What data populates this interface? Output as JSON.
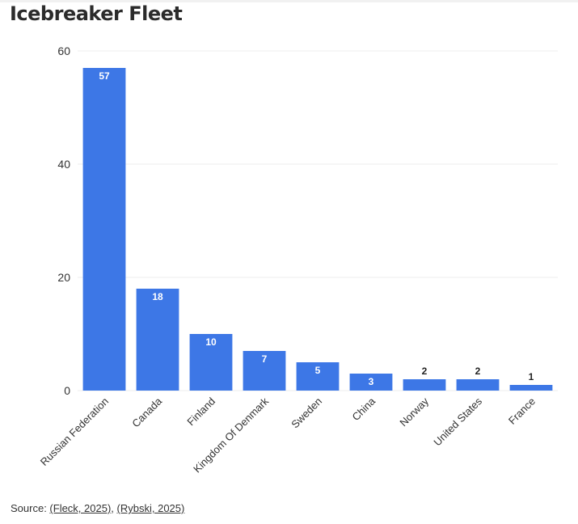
{
  "title": "Icebreaker Fleet",
  "colors": {
    "bar": "#3d77e6",
    "bar_label_inside": "#ffffff",
    "bar_label_outside": "#222222",
    "grid": "#ececec",
    "text": "#333333"
  },
  "chart_data": {
    "type": "bar",
    "title": "Icebreaker Fleet",
    "xlabel": "",
    "ylabel": "",
    "categories": [
      "Russian Federation",
      "Canada",
      "Finland",
      "Kingdom Of Denmark",
      "Sweden",
      "China",
      "Norway",
      "United States",
      "France"
    ],
    "values": [
      57,
      18,
      10,
      7,
      5,
      3,
      2,
      2,
      1
    ],
    "ylim": [
      0,
      60
    ],
    "yticks": [
      0,
      20,
      40,
      60
    ],
    "grid": true,
    "legend": "none",
    "data_labels": true
  },
  "footer": {
    "source_prefix": "Source: ",
    "link1": "(Fleck, 2025)",
    "separator": ", ",
    "link2": "(Rybski, 2025)"
  }
}
